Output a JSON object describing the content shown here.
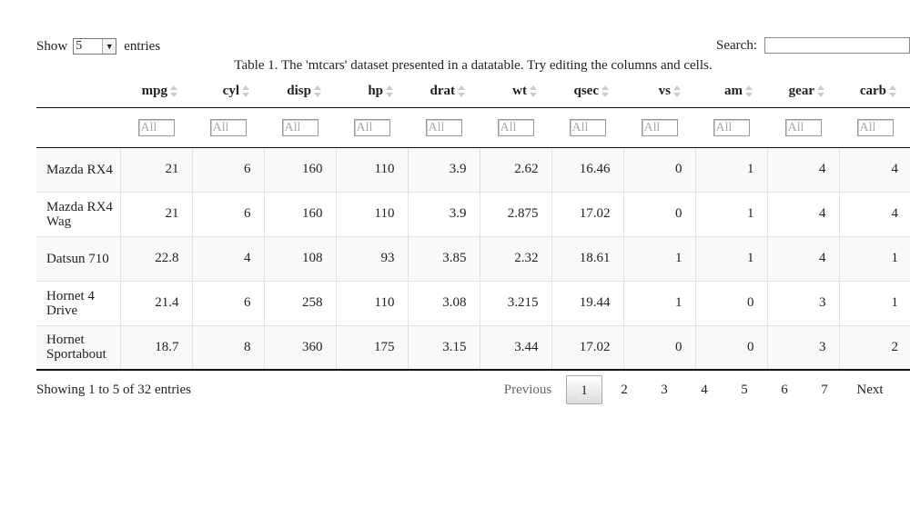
{
  "length": {
    "label_show": "Show",
    "selected": "5",
    "label_entries": "entries"
  },
  "search": {
    "label": "Search:",
    "value": ""
  },
  "caption": "Table 1. The 'mtcars' dataset presented in a datatable. Try editing the columns and cells.",
  "columns": [
    "mpg",
    "cyl",
    "disp",
    "hp",
    "drat",
    "wt",
    "qsec",
    "vs",
    "am",
    "gear",
    "carb"
  ],
  "filter_placeholder": "All",
  "rows": [
    {
      "name": "Mazda RX4",
      "values": [
        "21",
        "6",
        "160",
        "110",
        "3.9",
        "2.62",
        "16.46",
        "0",
        "1",
        "4",
        "4"
      ]
    },
    {
      "name": "Mazda RX4 Wag",
      "values": [
        "21",
        "6",
        "160",
        "110",
        "3.9",
        "2.875",
        "17.02",
        "0",
        "1",
        "4",
        "4"
      ]
    },
    {
      "name": "Datsun 710",
      "values": [
        "22.8",
        "4",
        "108",
        "93",
        "3.85",
        "2.32",
        "18.61",
        "1",
        "1",
        "4",
        "1"
      ]
    },
    {
      "name": "Hornet 4 Drive",
      "values": [
        "21.4",
        "6",
        "258",
        "110",
        "3.08",
        "3.215",
        "19.44",
        "1",
        "0",
        "3",
        "1"
      ]
    },
    {
      "name": "Hornet Sportabout",
      "values": [
        "18.7",
        "8",
        "360",
        "175",
        "3.15",
        "3.44",
        "17.02",
        "0",
        "0",
        "3",
        "2"
      ]
    }
  ],
  "info": "Showing 1 to 5 of 32 entries",
  "paging": {
    "previous": "Previous",
    "pages": [
      "1",
      "2",
      "3",
      "4",
      "5",
      "6",
      "7"
    ],
    "current": "1",
    "next": "Next"
  }
}
